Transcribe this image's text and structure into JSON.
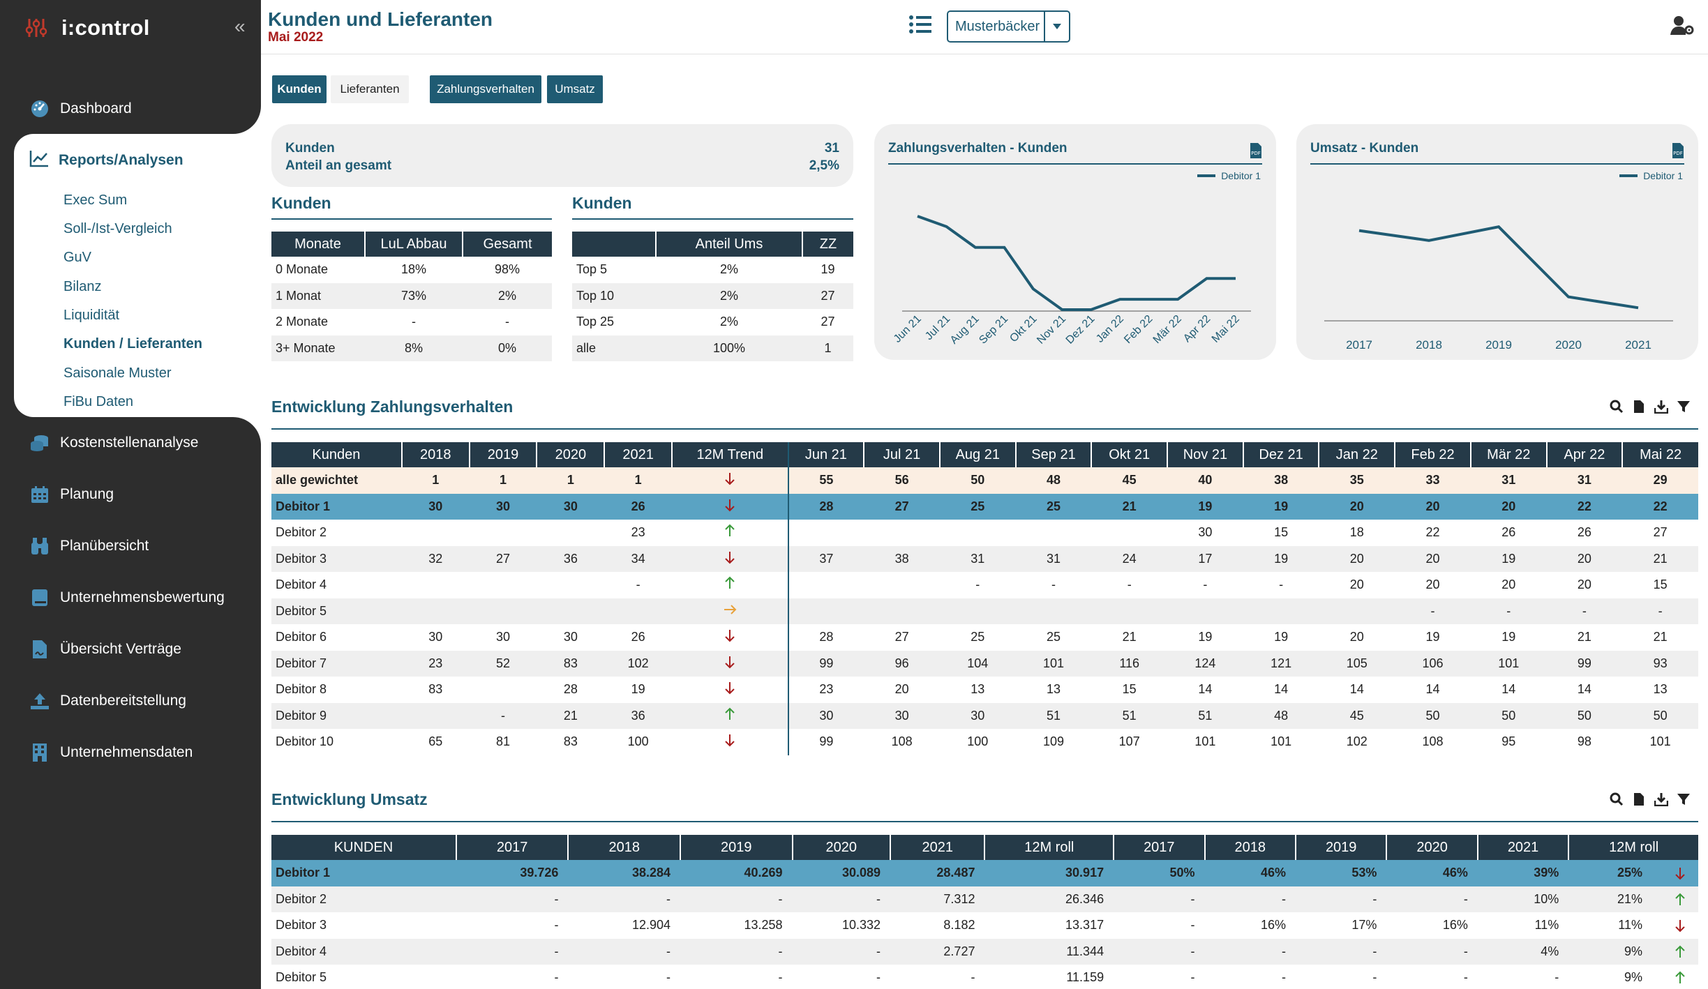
{
  "app": {
    "name": "i:control",
    "collapse": "«"
  },
  "nav": [
    {
      "label": "Dashboard",
      "icon": "dashboard-icon"
    },
    {
      "label": "Kostenstellenanalyse",
      "icon": "coins-icon"
    },
    {
      "label": "Planung",
      "icon": "calendar-icon"
    },
    {
      "label": "Planübersicht",
      "icon": "binoculars-icon"
    },
    {
      "label": "Unternehmensbewertung",
      "icon": "book-icon"
    },
    {
      "label": "Übersicht Verträge",
      "icon": "contract-icon"
    },
    {
      "label": "Datenbereitstellung",
      "icon": "upload-icon"
    },
    {
      "label": "Unternehmensdaten",
      "icon": "building-icon"
    }
  ],
  "active_section": {
    "label": "Reports/Analysen",
    "icon": "chart-line-icon",
    "items": [
      {
        "label": "Exec Sum"
      },
      {
        "label": "Soll-/Ist-Vergleich"
      },
      {
        "label": "GuV"
      },
      {
        "label": "Bilanz"
      },
      {
        "label": "Liquidität"
      },
      {
        "label": "Kunden / Lieferanten",
        "selected": true
      },
      {
        "label": "Saisonale Muster"
      },
      {
        "label": "FiBu Daten"
      }
    ]
  },
  "header": {
    "title": "Kunden und Lieferanten",
    "subtitle": "Mai 2022",
    "company": "Musterbäcker"
  },
  "tabs": {
    "kunden": "Kunden",
    "lieferanten": "Lieferanten",
    "zahlung": "Zahlungsverhalten",
    "umsatz": "Umsatz"
  },
  "stats": {
    "label1": "Kunden",
    "label2": "Anteil an gesamt",
    "value1": "31",
    "value2": "2,5%"
  },
  "kunden_table1": {
    "title": "Kunden",
    "headers": [
      "Monate",
      "LuL Abbau",
      "Gesamt"
    ],
    "rows": [
      [
        "0 Monate",
        "18%",
        "98%"
      ],
      [
        "1 Monat",
        "73%",
        "2%"
      ],
      [
        "2 Monate",
        "-",
        "-"
      ],
      [
        "3+ Monate",
        "8%",
        "0%"
      ]
    ]
  },
  "kunden_table2": {
    "title": "Kunden",
    "headers": [
      "",
      "Anteil Ums",
      "ZZ"
    ],
    "rows": [
      [
        "Top 5",
        "2%",
        "19"
      ],
      [
        "Top 10",
        "2%",
        "27"
      ],
      [
        "Top 25",
        "2%",
        "27"
      ],
      [
        "alle",
        "100%",
        "1"
      ]
    ]
  },
  "chart_data": [
    {
      "type": "line",
      "title": "Zahlungsverhalten - Kunden",
      "x": [
        "Jun 21",
        "Jul 21",
        "Aug 21",
        "Sep 21",
        "Okt 21",
        "Nov 21",
        "Dez 21",
        "Jan 22",
        "Feb 22",
        "Mär 22",
        "Apr 22",
        "Mai 22"
      ],
      "series": [
        {
          "name": "Debitor 1",
          "values": [
            28,
            27,
            25,
            25,
            21,
            19,
            19,
            20,
            20,
            20,
            22,
            22
          ]
        }
      ],
      "ylim": [
        19,
        28
      ],
      "color": "#1f5b73"
    },
    {
      "type": "line",
      "title": "Umsatz - Kunden",
      "x": [
        "2017",
        "2018",
        "2019",
        "2020",
        "2021"
      ],
      "series": [
        {
          "name": "Debitor 1",
          "values": [
            39726,
            38284,
            40269,
            30089,
            28487
          ]
        }
      ],
      "ylim": [
        27000,
        41000
      ],
      "color": "#1f5b73"
    }
  ],
  "zahlung": {
    "title": "Entwicklung Zahlungsverhalten",
    "headers": [
      "Kunden",
      "2018",
      "2019",
      "2020",
      "2021",
      "12M Trend",
      "Jun 21",
      "Jul 21",
      "Aug 21",
      "Sep 21",
      "Okt 21",
      "Nov 21",
      "Dez 21",
      "Jan 22",
      "Feb 22",
      "Mär 22",
      "Apr 22",
      "Mai 22"
    ],
    "rows": [
      {
        "name": "alle gewichtet",
        "cls": "row-total",
        "years": [
          "1",
          "1",
          "1",
          "1"
        ],
        "trend": "down",
        "months": [
          "55",
          "56",
          "50",
          "48",
          "45",
          "40",
          "38",
          "35",
          "33",
          "31",
          "31",
          "29"
        ]
      },
      {
        "name": "Debitor 1",
        "cls": "row-hl",
        "years": [
          "30",
          "30",
          "30",
          "26"
        ],
        "trend": "down",
        "months": [
          "28",
          "27",
          "25",
          "25",
          "21",
          "19",
          "19",
          "20",
          "20",
          "20",
          "22",
          "22"
        ]
      },
      {
        "name": "Debitor 2",
        "cls": "",
        "years": [
          "",
          "",
          "",
          "23"
        ],
        "trend": "up",
        "months": [
          "",
          "",
          "",
          "",
          "",
          "30",
          "15",
          "18",
          "22",
          "26",
          "26",
          "27"
        ]
      },
      {
        "name": "Debitor 3",
        "cls": "",
        "years": [
          "32",
          "27",
          "36",
          "34"
        ],
        "trend": "down",
        "months": [
          "37",
          "38",
          "31",
          "31",
          "24",
          "17",
          "19",
          "20",
          "20",
          "19",
          "20",
          "21"
        ]
      },
      {
        "name": "Debitor 4",
        "cls": "",
        "years": [
          "",
          "",
          "",
          "-"
        ],
        "trend": "up",
        "months": [
          "",
          "",
          "-",
          "-",
          "-",
          "-",
          "-",
          "20",
          "20",
          "20",
          "20",
          "15"
        ]
      },
      {
        "name": "Debitor 5",
        "cls": "",
        "years": [
          "",
          "",
          "",
          ""
        ],
        "trend": "right",
        "months": [
          "",
          "",
          "",
          "",
          "",
          "",
          "",
          "",
          "-",
          "-",
          "-",
          "-"
        ]
      },
      {
        "name": "Debitor 6",
        "cls": "",
        "years": [
          "30",
          "30",
          "30",
          "26"
        ],
        "trend": "down",
        "months": [
          "28",
          "27",
          "25",
          "25",
          "21",
          "19",
          "19",
          "20",
          "19",
          "19",
          "21",
          "21"
        ]
      },
      {
        "name": "Debitor 7",
        "cls": "",
        "years": [
          "23",
          "52",
          "83",
          "102"
        ],
        "trend": "down",
        "months": [
          "99",
          "96",
          "104",
          "101",
          "116",
          "124",
          "121",
          "105",
          "106",
          "101",
          "99",
          "93"
        ]
      },
      {
        "name": "Debitor 8",
        "cls": "",
        "years": [
          "83",
          "",
          "28",
          "19"
        ],
        "trend": "down",
        "months": [
          "23",
          "20",
          "13",
          "13",
          "15",
          "14",
          "14",
          "14",
          "14",
          "14",
          "14",
          "13"
        ]
      },
      {
        "name": "Debitor 9",
        "cls": "",
        "years": [
          "",
          "-",
          "21",
          "36"
        ],
        "trend": "up",
        "months": [
          "30",
          "30",
          "30",
          "51",
          "51",
          "51",
          "48",
          "45",
          "50",
          "50",
          "50",
          "50"
        ]
      },
      {
        "name": "Debitor 10",
        "cls": "",
        "years": [
          "65",
          "81",
          "83",
          "100"
        ],
        "trend": "down",
        "months": [
          "99",
          "108",
          "100",
          "109",
          "107",
          "101",
          "101",
          "102",
          "108",
          "95",
          "98",
          "101"
        ]
      }
    ]
  },
  "umsatz": {
    "title": "Entwicklung Umsatz",
    "headers": [
      "KUNDEN",
      "2017",
      "2018",
      "2019",
      "2020",
      "2021",
      "12M roll",
      "2017",
      "2018",
      "2019",
      "2020",
      "2021",
      "12M roll"
    ],
    "rows": [
      {
        "name": "Debitor 1",
        "cls": "row-hl",
        "vals": [
          "39.726",
          "38.284",
          "40.269",
          "30.089",
          "28.487",
          "30.917",
          "50%",
          "46%",
          "53%",
          "46%",
          "39%",
          "25%"
        ],
        "trend": "down"
      },
      {
        "name": "Debitor 2",
        "cls": "",
        "vals": [
          "-",
          "-",
          "-",
          "-",
          "7.312",
          "26.346",
          "-",
          "-",
          "-",
          "-",
          "10%",
          "21%"
        ],
        "trend": "up"
      },
      {
        "name": "Debitor 3",
        "cls": "",
        "vals": [
          "-",
          "12.904",
          "13.258",
          "10.332",
          "8.182",
          "13.317",
          "-",
          "16%",
          "17%",
          "16%",
          "11%",
          "11%"
        ],
        "trend": "down"
      },
      {
        "name": "Debitor 4",
        "cls": "",
        "vals": [
          "-",
          "-",
          "-",
          "-",
          "2.727",
          "11.344",
          "-",
          "-",
          "-",
          "-",
          "4%",
          "9%"
        ],
        "trend": "up"
      },
      {
        "name": "Debitor 5",
        "cls": "",
        "vals": [
          "-",
          "-",
          "-",
          "-",
          "-",
          "11.159",
          "-",
          "-",
          "-",
          "-",
          "-",
          "9%"
        ],
        "trend": "up"
      }
    ]
  }
}
